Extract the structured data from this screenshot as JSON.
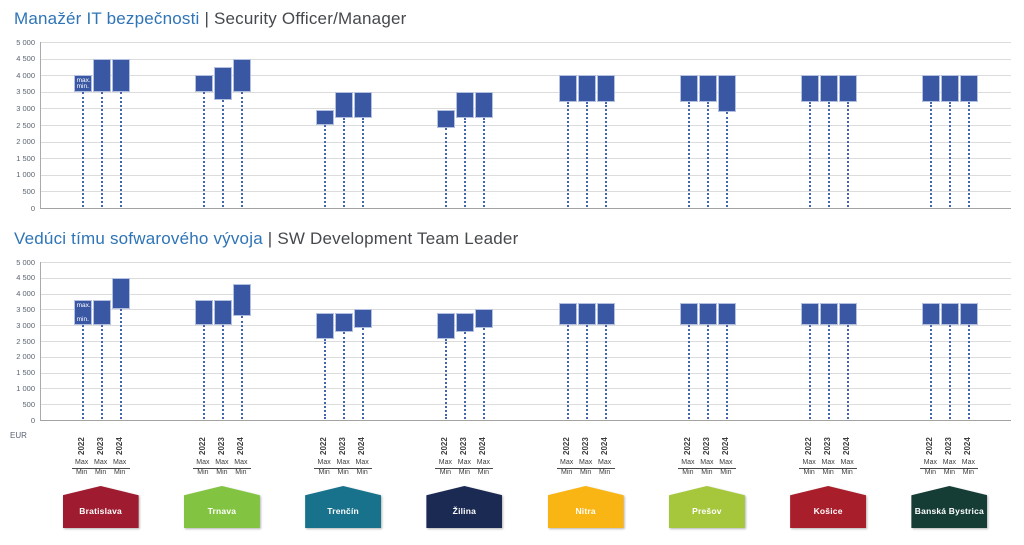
{
  "colors": {
    "bar_fill": "#3a57a3",
    "bar_border": "#b3c0e0",
    "drop_line": "#4565ae",
    "grid_line": "#dcdcdc",
    "axis_line": "#a2a2a2",
    "title_accent": "#2e74b6",
    "title_muted": "#46494d",
    "tick_text": "#5b6470",
    "footer_text": "#3e3e3e"
  },
  "axis": {
    "y_tick_labels": [
      "5 000",
      "4 500",
      "4 000",
      "3 500",
      "3 000",
      "2 500",
      "2 000",
      "1 500",
      "1 000",
      "500",
      "0"
    ],
    "unit_label": "EUR",
    "years": [
      "2022",
      "2023",
      "2024"
    ],
    "max_label": "Max",
    "min_label": "Min",
    "bar_inline_max": "max.",
    "bar_inline_min": "min."
  },
  "cities": [
    {
      "name": "Bratislava",
      "color": "#9f1b30"
    },
    {
      "name": "Trnava",
      "color": "#82c341"
    },
    {
      "name": "Trenčín",
      "color": "#19728c"
    },
    {
      "name": "Žilina",
      "color": "#1b2a52"
    },
    {
      "name": "Nitra",
      "color": "#f9b514"
    },
    {
      "name": "Prešov",
      "color": "#a6c73c"
    },
    {
      "name": "Košice",
      "color": "#a91e2b"
    },
    {
      "name": "Banská Bystrica",
      "color": "#153c35"
    }
  ],
  "chart_data": [
    {
      "type": "bar",
      "subtype": "floating-min-max-range",
      "title_sk": "Manažér IT bezpečnosti",
      "title_sep": " | ",
      "title_en": "Security Officer/Manager",
      "unit": "EUR",
      "ylim": [
        0,
        5000
      ],
      "ytick_step": 500,
      "grid": true,
      "legend_position": "none",
      "categories": [
        "Bratislava",
        "Trnava",
        "Trenčín",
        "Žilina",
        "Nitra",
        "Prešov",
        "Košice",
        "Banská Bystrica"
      ],
      "years": [
        "2022",
        "2023",
        "2024"
      ],
      "ranges_min_max": {
        "Bratislava": [
          [
            3500,
            4000
          ],
          [
            3500,
            4500
          ],
          [
            3500,
            4500
          ]
        ],
        "Trnava": [
          [
            3500,
            4000
          ],
          [
            3250,
            4250
          ],
          [
            3500,
            4500
          ]
        ],
        "Trenčín": [
          [
            2500,
            2950
          ],
          [
            2700,
            3500
          ],
          [
            2700,
            3500
          ]
        ],
        "Žilina": [
          [
            2400,
            2950
          ],
          [
            2700,
            3500
          ],
          [
            2700,
            3500
          ]
        ],
        "Nitra": [
          [
            3200,
            4000
          ],
          [
            3200,
            4000
          ],
          [
            3200,
            4000
          ]
        ],
        "Prešov": [
          [
            3200,
            4000
          ],
          [
            3200,
            4000
          ],
          [
            2900,
            4000
          ]
        ],
        "Košice": [
          [
            3200,
            4000
          ],
          [
            3200,
            4000
          ],
          [
            3200,
            4000
          ]
        ],
        "Banská Bystrica": [
          [
            3200,
            4000
          ],
          [
            3200,
            4000
          ],
          [
            3200,
            4000
          ]
        ]
      }
    },
    {
      "type": "bar",
      "subtype": "floating-min-max-range",
      "title_sk": "Vedúci tímu sofwarového vývoja",
      "title_sep": " | ",
      "title_en": "SW Development Team Leader",
      "unit": "EUR",
      "ylim": [
        0,
        5000
      ],
      "ytick_step": 500,
      "grid": true,
      "legend_position": "none",
      "categories": [
        "Bratislava",
        "Trnava",
        "Trenčín",
        "Žilina",
        "Nitra",
        "Prešov",
        "Košice",
        "Banská Bystrica"
      ],
      "years": [
        "2022",
        "2023",
        "2024"
      ],
      "ranges_min_max": {
        "Bratislava": [
          [
            3000,
            3800
          ],
          [
            3000,
            3800
          ],
          [
            3500,
            4500
          ]
        ],
        "Trnava": [
          [
            3000,
            3800
          ],
          [
            3000,
            3800
          ],
          [
            3300,
            4300
          ]
        ],
        "Trenčín": [
          [
            2550,
            3400
          ],
          [
            2800,
            3400
          ],
          [
            2900,
            3500
          ]
        ],
        "Žilina": [
          [
            2550,
            3400
          ],
          [
            2800,
            3400
          ],
          [
            2900,
            3500
          ]
        ],
        "Nitra": [
          [
            3000,
            3700
          ],
          [
            3000,
            3700
          ],
          [
            3000,
            3700
          ]
        ],
        "Prešov": [
          [
            3000,
            3700
          ],
          [
            3000,
            3700
          ],
          [
            3000,
            3700
          ]
        ],
        "Košice": [
          [
            3000,
            3700
          ],
          [
            3000,
            3700
          ],
          [
            3000,
            3700
          ]
        ],
        "Banská Bystrica": [
          [
            3000,
            3700
          ],
          [
            3000,
            3700
          ],
          [
            3000,
            3700
          ]
        ]
      }
    }
  ]
}
